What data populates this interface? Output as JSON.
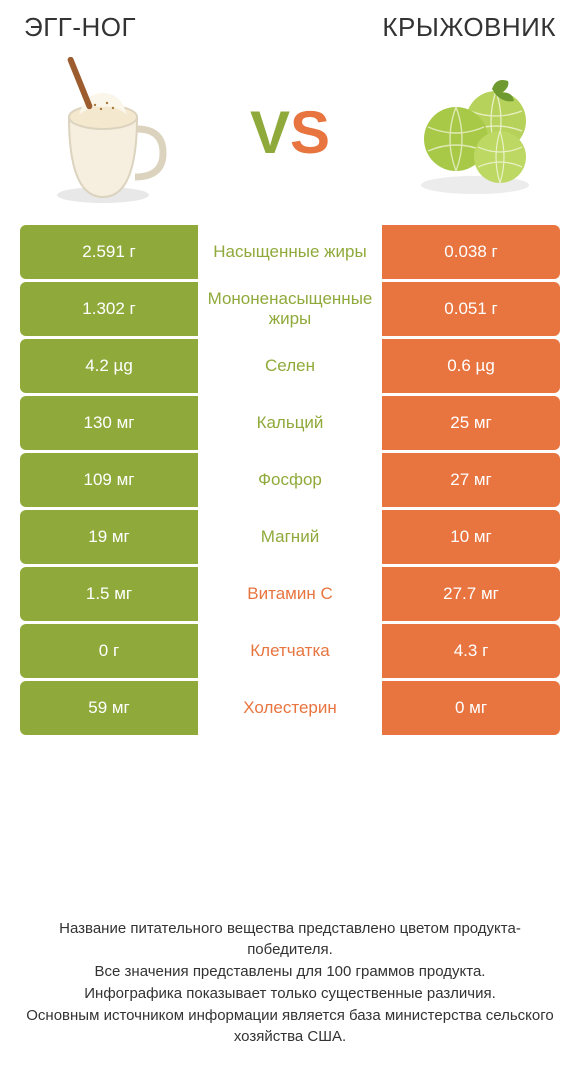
{
  "colors": {
    "left": "#8faa3b",
    "right": "#e8743f",
    "bg": "#ffffff"
  },
  "titles": {
    "left": "ЭГГ-НОГ",
    "right": "КРЫЖОВНИК"
  },
  "vs": {
    "v": "V",
    "s": "S"
  },
  "rows": [
    {
      "left": "2.591 г",
      "label": "Насыщенные жиры",
      "right": "0.038 г",
      "winner": "left"
    },
    {
      "left": "1.302 г",
      "label": "Мононенасыщенные жиры",
      "right": "0.051 г",
      "winner": "left"
    },
    {
      "left": "4.2 µg",
      "label": "Селен",
      "right": "0.6 µg",
      "winner": "left"
    },
    {
      "left": "130 мг",
      "label": "Кальций",
      "right": "25 мг",
      "winner": "left"
    },
    {
      "left": "109 мг",
      "label": "Фосфор",
      "right": "27 мг",
      "winner": "left"
    },
    {
      "left": "19 мг",
      "label": "Магний",
      "right": "10 мг",
      "winner": "left"
    },
    {
      "left": "1.5 мг",
      "label": "Витамин C",
      "right": "27.7 мг",
      "winner": "right"
    },
    {
      "left": "0 г",
      "label": "Клетчатка",
      "right": "4.3 г",
      "winner": "right"
    },
    {
      "left": "59 мг",
      "label": "Холестерин",
      "right": "0 мг",
      "winner": "right"
    }
  ],
  "footer": {
    "line1": "Название питательного вещества представлено цветом продукта-победителя.",
    "line2": "Все значения представлены для 100 граммов продукта.",
    "line3": "Инфографика показывает только существенные различия.",
    "line4": "Основным источником информации является база министерства сельского хозяйства США."
  }
}
